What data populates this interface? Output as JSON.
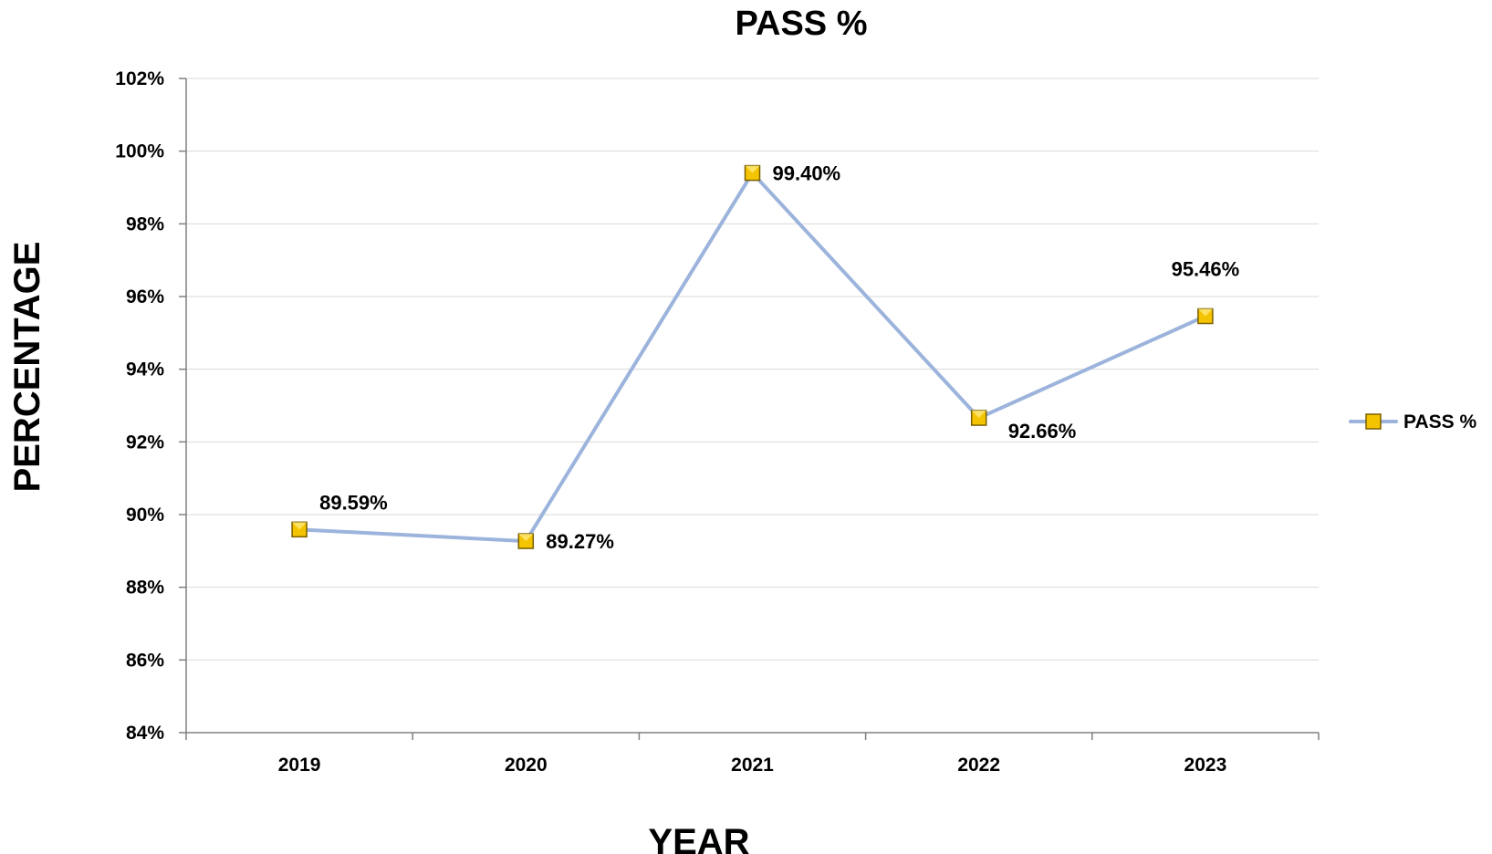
{
  "chart_data": {
    "type": "line",
    "title": "PASS %",
    "xlabel": "YEAR",
    "ylabel": "PERCENTAGE",
    "categories": [
      "2019",
      "2020",
      "2021",
      "2022",
      "2023"
    ],
    "series": [
      {
        "name": "PASS %",
        "values": [
          89.59,
          89.27,
          99.4,
          92.66,
          95.46
        ],
        "labels": [
          "89.59%",
          "89.27%",
          "99.40%",
          "92.66%",
          "95.46%"
        ],
        "color": "#9cb4dc",
        "marker_color": "#f5c400"
      }
    ],
    "ylim": [
      84,
      102
    ],
    "yticks": [
      "84%",
      "86%",
      "88%",
      "90%",
      "92%",
      "94%",
      "96%",
      "98%",
      "100%",
      "102%"
    ],
    "grid": true,
    "legend": "right"
  }
}
